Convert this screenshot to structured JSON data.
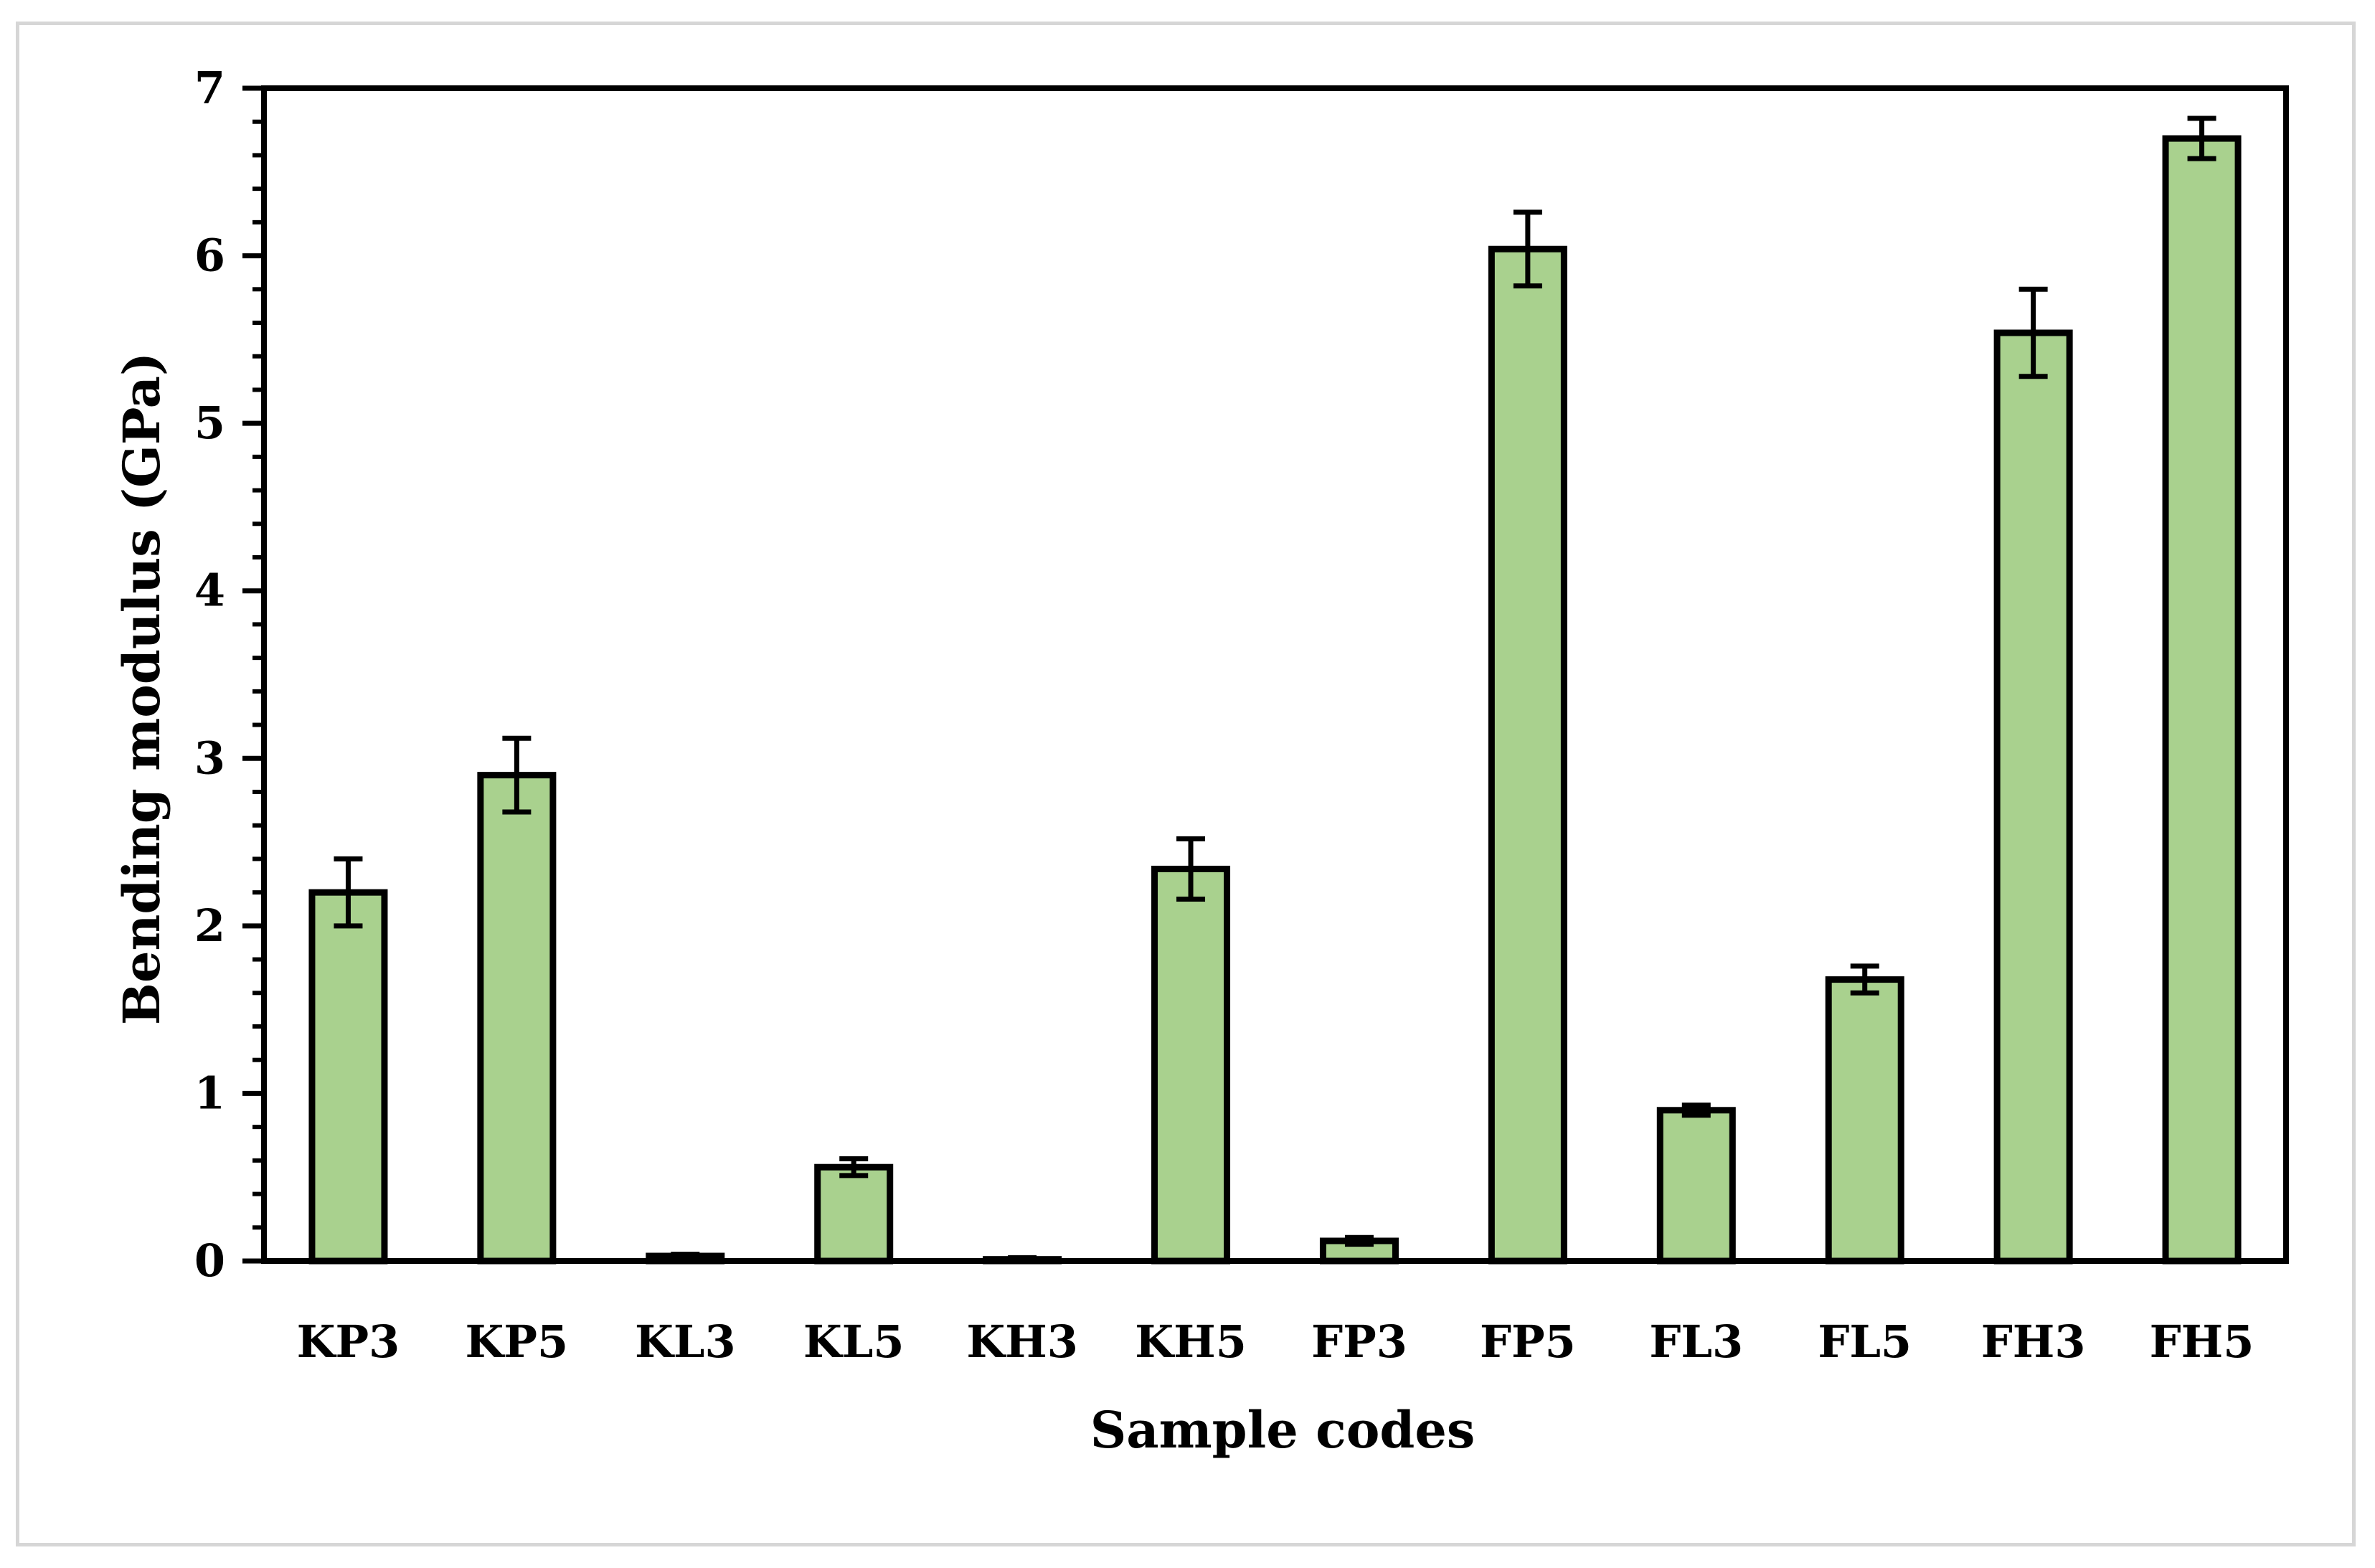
{
  "chart_data": {
    "type": "bar",
    "title": "",
    "xlabel": "Sample codes",
    "ylabel": "Bending modulus (GPa)",
    "ylim": [
      0,
      7
    ],
    "yticks": [
      "0",
      "1",
      "2",
      "3",
      "4",
      "5",
      "6",
      "7"
    ],
    "y_minor_step": 0.2,
    "categories": [
      "KP3",
      "KP5",
      "KL3",
      "KL5",
      "KH3",
      "KH5",
      "FP3",
      "FP5",
      "FL3",
      "FL5",
      "FH3",
      "FH5"
    ],
    "values": [
      2.2,
      2.9,
      0.03,
      0.56,
      0.01,
      2.34,
      0.12,
      6.04,
      0.9,
      1.68,
      5.54,
      6.7
    ],
    "errors": [
      0.2,
      0.22,
      0.01,
      0.05,
      0.01,
      0.18,
      0.02,
      0.22,
      0.03,
      0.08,
      0.26,
      0.12
    ],
    "grid": false,
    "legend": "none",
    "colors": {
      "bar_fill": "#a9d18e",
      "bar_edge": "#000000",
      "axis": "#000000",
      "frame": "#d6d6d6"
    }
  }
}
